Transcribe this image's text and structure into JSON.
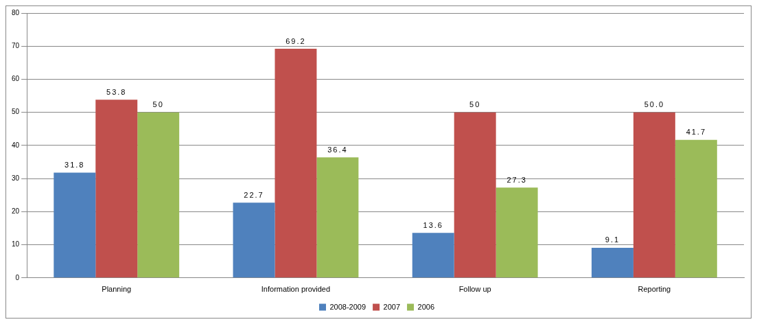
{
  "chart_data": {
    "type": "bar",
    "categories": [
      "Planning",
      "Information provided",
      "Follow up",
      "Reporting"
    ],
    "series": [
      {
        "name": "2008-2009",
        "color": "#4f81bd",
        "values": [
          31.8,
          22.7,
          13.6,
          9.1
        ],
        "value_labels": [
          "31.8",
          "22.7",
          "13.6",
          "9.1"
        ]
      },
      {
        "name": "2007",
        "color": "#c0504d",
        "values": [
          53.8,
          69.2,
          50,
          50.0
        ],
        "value_labels": [
          "53.8",
          "69.2",
          "50",
          "50.0"
        ]
      },
      {
        "name": "2006",
        "color": "#9bbb59",
        "values": [
          50,
          36.4,
          27.3,
          41.7
        ],
        "value_labels": [
          "50",
          "36.4",
          "27.3",
          "41.7"
        ]
      }
    ],
    "ylim": [
      0,
      80
    ],
    "yticks": [
      0,
      10,
      20,
      30,
      40,
      50,
      60,
      70,
      80
    ],
    "grid": "y",
    "legend": "bottom"
  }
}
